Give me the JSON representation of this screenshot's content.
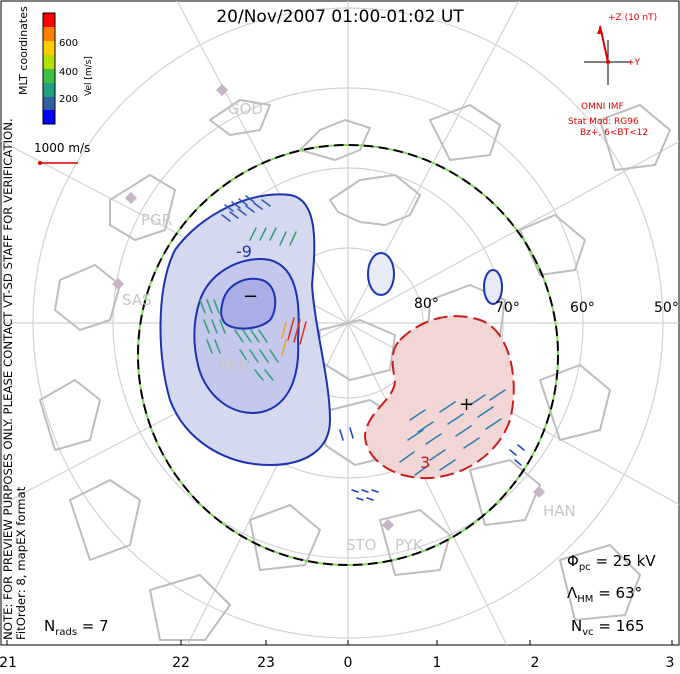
{
  "title": "20/Nov/2007 01:00-01:02 UT",
  "coord_label": "MLT coordinates",
  "colorbar": {
    "label": "Vel [m/s]",
    "ticks": [
      "600",
      "400",
      "200"
    ],
    "colors": [
      "#ff0000",
      "#ff8000",
      "#ffcc00",
      "#b0e000",
      "#40c040",
      "#20a080",
      "#3060a0",
      "#0000ff"
    ]
  },
  "scale_vector_label": "1000 m/s",
  "imf": {
    "z_label": "+Z (10 nT)",
    "y_label": "+Y",
    "source": "OMNI IMF",
    "model_line1": "Stat Mod: RG96",
    "model_line2": "Bz+, 6<BT<12"
  },
  "notes": {
    "preview": "NOTE: FOR PREVIEW PURPOSES ONLY. PLEASE CONTACT VT-SD STAFF FOR VERIFICATION.",
    "fit": "FitOrder: 8, mapEX format"
  },
  "stations": [
    "GOD",
    "PGR",
    "SAS",
    "RKN",
    "HAN",
    "STO",
    "PYK"
  ],
  "lat_labels": [
    "80°",
    "70°",
    "60°",
    "50°"
  ],
  "contour_labels": [
    "-9",
    "3"
  ],
  "markers": {
    "min": "−",
    "max": "+"
  },
  "stats": {
    "phi_pc": "25 kV",
    "lambda_hm": "63°",
    "n_vc": "165",
    "n_rads": "7"
  },
  "x_ticks": [
    "21",
    "22",
    "23",
    "0",
    "1",
    "2",
    "3"
  ],
  "colors": {
    "negative_cell": "#1a33b3",
    "positive_cell": "#c81e1e",
    "hmb": "#7ed957",
    "imf": "#e00000"
  }
}
